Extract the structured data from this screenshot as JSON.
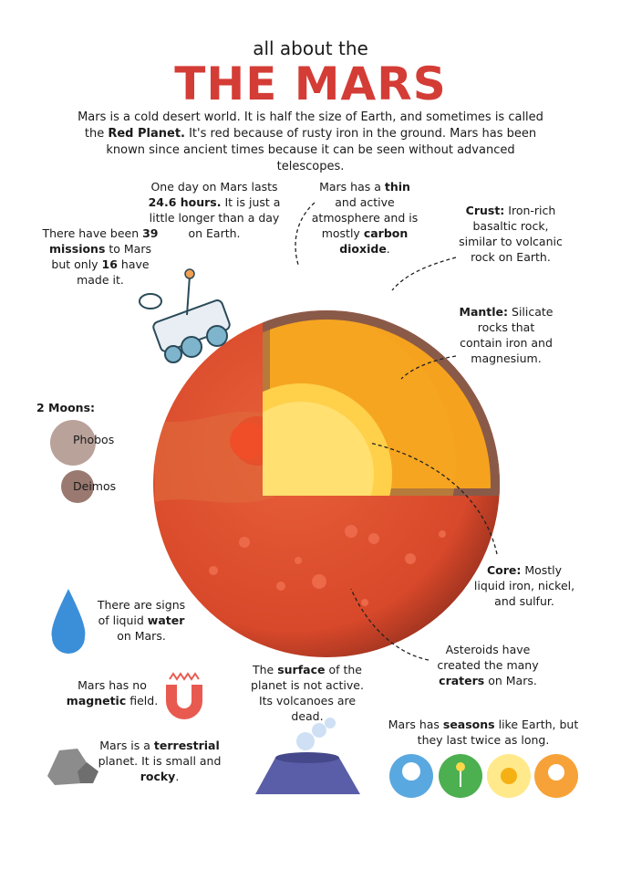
{
  "header": {
    "kicker": "all about the",
    "title": "THE MARS",
    "intro": [
      {
        "t": "Mars is a cold desert world. It is half the size of Earth, and sometimes is called the "
      },
      {
        "t": "Red Planet.",
        "b": true
      },
      {
        "t": "  It's red because of rusty iron in the ground. Mars has been known since ancient times because  it can be seen without advanced telescopes."
      }
    ]
  },
  "facts": {
    "day": [
      {
        "t": "One day on Mars lasts "
      },
      {
        "t": "24.6 hours.",
        "b": true
      },
      {
        "t": " It is just a little longer than a day on Earth."
      }
    ],
    "atmosphere": [
      {
        "t": "Mars has a "
      },
      {
        "t": "thin",
        "b": true
      },
      {
        "t": " and active atmosphere and is mostly "
      },
      {
        "t": "carbon dioxide",
        "b": true
      },
      {
        "t": "."
      }
    ],
    "crust": [
      {
        "t": "Crust:",
        "b": true
      },
      {
        "t": " Iron-rich basaltic rock, similar to volcanic rock on Earth."
      }
    ],
    "missions": [
      {
        "t": "There have been "
      },
      {
        "t": "39 missions",
        "b": true
      },
      {
        "t": " to Mars but  only "
      },
      {
        "t": "16",
        "b": true
      },
      {
        "t": " have made it."
      }
    ],
    "mantle": [
      {
        "t": "Mantle:",
        "b": true
      },
      {
        "t": " Silicate rocks that contain iron and magnesium."
      }
    ],
    "core": [
      {
        "t": "Core:",
        "b": true
      },
      {
        "t": " Mostly liquid iron, nickel, and sulfur."
      }
    ],
    "water": [
      {
        "t": "There are signs of liquid "
      },
      {
        "t": "water",
        "b": true
      },
      {
        "t": " on Mars."
      }
    ],
    "asteroids": [
      {
        "t": "Asteroids have created the many "
      },
      {
        "t": "craters",
        "b": true
      },
      {
        "t": " on Mars."
      }
    ],
    "magnetic": [
      {
        "t": "Mars has no "
      },
      {
        "t": "magnetic",
        "b": true
      },
      {
        "t": " field."
      }
    ],
    "surface": [
      {
        "t": "The "
      },
      {
        "t": "surface",
        "b": true
      },
      {
        "t": " of the planet is not active. Its volcanoes are dead."
      }
    ],
    "seasons": [
      {
        "t": "Mars has "
      },
      {
        "t": "seasons",
        "b": true
      },
      {
        "t": " like Earth, but they last twice as long."
      }
    ],
    "terrestrial": [
      {
        "t": "Mars is a "
      },
      {
        "t": "terrestrial",
        "b": true
      },
      {
        "t": " planet. It is small and "
      },
      {
        "t": "rocky",
        "b": true
      },
      {
        "t": "."
      }
    ]
  },
  "moons": {
    "title": "2 Moons:",
    "names": [
      "Phobos",
      "Deimos"
    ]
  }
}
